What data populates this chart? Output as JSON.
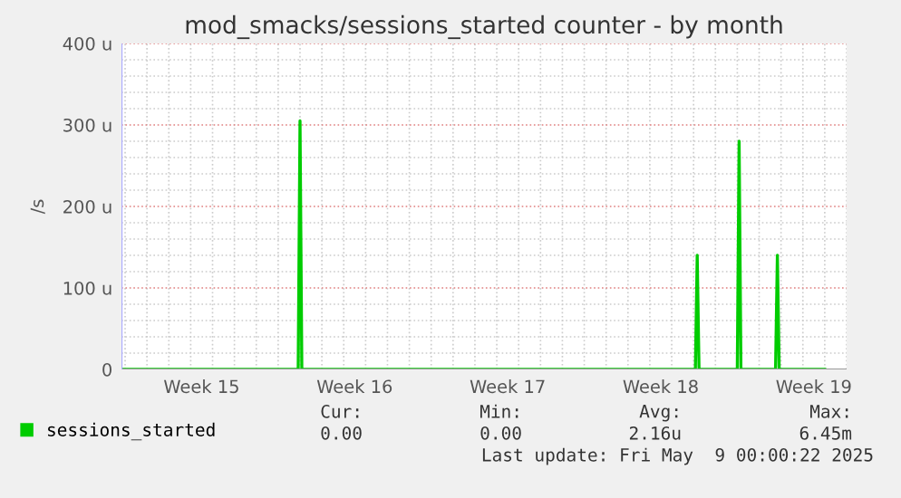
{
  "chart_data": {
    "type": "line",
    "title": "mod_smacks/sessions_started counter - by month",
    "ylabel": "/s",
    "x": [
      "2025-04-06T20:00",
      "2025-04-14T22:00",
      "2025-04-15T00:00",
      "2025-04-15T02:00",
      "2025-05-03T02:00",
      "2025-05-03T04:00",
      "2025-05-03T06:00",
      "2025-05-05T00:00",
      "2025-05-05T02:00",
      "2025-05-05T04:00",
      "2025-05-06T18:00",
      "2025-05-06T20:00",
      "2025-05-06T22:00",
      "2025-05-09T00:00"
    ],
    "series": [
      {
        "name": "sessions_started",
        "color": "#00cc00",
        "values": [
          0,
          0,
          305,
          0,
          0,
          140,
          0,
          0,
          280,
          0,
          0,
          140,
          0,
          0
        ]
      }
    ],
    "xlim": [
      "2025-04-06T20:00",
      "2025-05-10T00:00"
    ],
    "xticks": [
      {
        "value": "2025-04-10T12:00",
        "label": "Week 15"
      },
      {
        "value": "2025-04-17T12:00",
        "label": "Week 16"
      },
      {
        "value": "2025-04-24T12:00",
        "label": "Week 17"
      },
      {
        "value": "2025-05-01T12:00",
        "label": "Week 18"
      },
      {
        "value": "2025-05-08T12:00",
        "label": "Week 19"
      }
    ],
    "ylim": [
      0,
      400
    ],
    "yticks": [
      0,
      {
        "value": 100,
        "label": "100 u"
      },
      {
        "value": 200,
        "label": "200 u"
      },
      {
        "value": 300,
        "label": "300 u"
      },
      {
        "value": 400,
        "label": "400 u"
      }
    ],
    "grid": true,
    "legend": "bottom",
    "marker": "none",
    "line_style": "solid",
    "annotations": [
      "Cur:",
      "Min:",
      "Avg:",
      "Max:",
      "0.00",
      "0.00",
      "2.16u",
      "6.45m",
      "Last update: Fri May  9 00:00:22 2025"
    ]
  }
}
